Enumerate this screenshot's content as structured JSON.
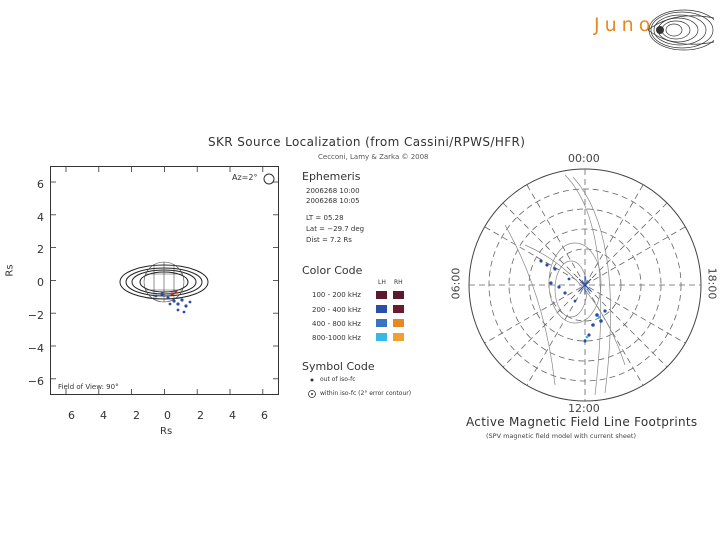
{
  "logo": {
    "text": "Juno"
  },
  "figure": {
    "title": "SKR Source Localization (from Cassini/RPWS/HFR)",
    "credit": "Cecconi, Lamy & Zarka © 2008",
    "left_plot": {
      "ylabel": "Rs",
      "xlabel": "Rs",
      "yticks": [
        "6",
        "4",
        "2",
        "0",
        "−2",
        "−4",
        "−6"
      ],
      "xticks": [
        "6",
        "4",
        "2",
        "0",
        "2",
        "4",
        "6"
      ],
      "az_el": "Az=2°",
      "fov": "Field of View: 90°"
    },
    "ephemeris": {
      "heading": "Ephemeris",
      "lines": [
        "2006268 10:00",
        "2006268 10:05",
        "LT  = 05.28",
        "Lat = −29.7 deg",
        "Dist = 7.2 Rs"
      ]
    },
    "color_code": {
      "heading": "Color Code",
      "col_lh": "LH",
      "col_rh": "RH",
      "rows": [
        {
          "label": "100 - 200 kHz",
          "lh": "#5a1a2e",
          "rh": "#5a1a2e"
        },
        {
          "label": "200 - 400 kHz",
          "lh": "#2a4fa8",
          "rh": "#6b1c2c"
        },
        {
          "label": "400 - 800 kHz",
          "lh": "#3a73c4",
          "rh": "#e8891f"
        },
        {
          "label": "800-1000 kHz",
          "lh": "#36b8e8",
          "rh": "#f0a030"
        }
      ]
    },
    "symbol_code": {
      "heading": "Symbol Code",
      "lines": [
        "out of iso-fc",
        "within iso-fc (2° error contour)"
      ]
    },
    "polar": {
      "top": "00:00",
      "bottom": "12:00",
      "left": "06:00",
      "right": "18:00",
      "caption": "Active Magnetic Field Line Footprints",
      "caption_sub": "(SPV magnetic field model with current sheet)"
    }
  }
}
